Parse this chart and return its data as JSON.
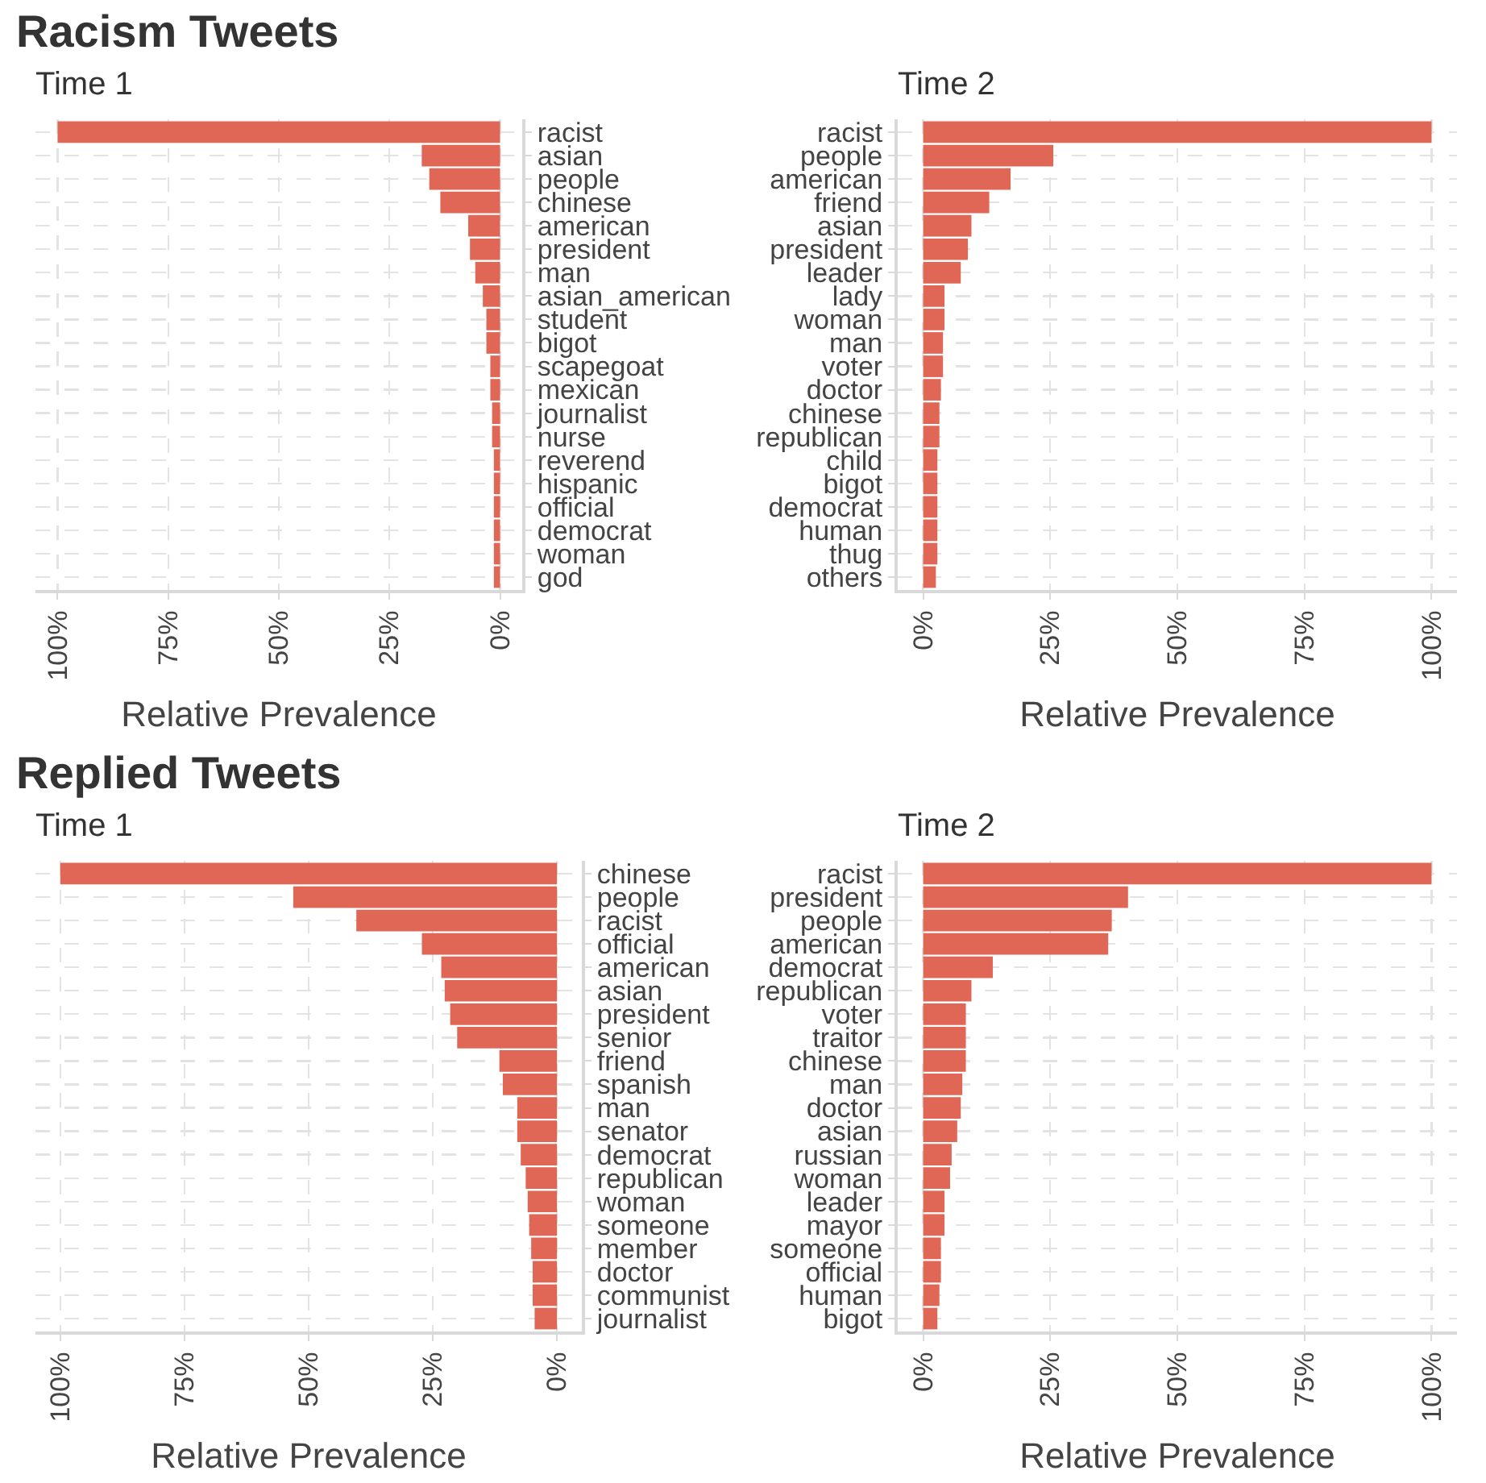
{
  "chart_data": [
    {
      "type": "bar",
      "orientation": "horizontal",
      "title": "Racism Tweets",
      "subtitle": "Time 1",
      "xlabel": "Relative Prevalence",
      "categories": [
        "racist",
        "asian",
        "people",
        "chinese",
        "american",
        "president",
        "man",
        "asian_american",
        "student",
        "bigot",
        "scapegoat",
        "mexican",
        "journalist",
        "nurse",
        "reverend",
        "hispanic",
        "official",
        "democrat",
        "woman",
        "god"
      ],
      "values": [
        100,
        17.7,
        16,
        13.5,
        7.2,
        6.8,
        5.6,
        3.9,
        3.1,
        3.1,
        2.2,
        2.2,
        1.8,
        1.8,
        1.4,
        1.4,
        1.4,
        1.4,
        1.4,
        1.4
      ],
      "color": "#e06756",
      "xlim": [
        105,
        -5
      ],
      "xticks": [
        {
          "value": 100,
          "label": "100%"
        },
        {
          "value": 75,
          "label": "75%"
        },
        {
          "value": 50,
          "label": "50%"
        },
        {
          "value": 25,
          "label": "25%"
        },
        {
          "value": 0,
          "label": "0%"
        }
      ],
      "grid": true
    },
    {
      "type": "bar",
      "orientation": "horizontal",
      "subtitle": "Time 2",
      "xlabel": "Relative Prevalence",
      "categories": [
        "racist",
        "people",
        "american",
        "friend",
        "asian",
        "president",
        "leader",
        "lady",
        "woman",
        "man",
        "voter",
        "doctor",
        "chinese",
        "republican",
        "child",
        "bigot",
        "democrat",
        "human",
        "thug",
        "others"
      ],
      "values": [
        100,
        25.6,
        17.2,
        13,
        9.5,
        8.8,
        7.4,
        4.2,
        4.2,
        3.9,
        3.9,
        3.5,
        3.2,
        3.2,
        2.8,
        2.8,
        2.8,
        2.8,
        2.8,
        2.5
      ],
      "color": "#e06756",
      "xlim": [
        -5,
        105
      ],
      "xticks": [
        {
          "value": 0,
          "label": "0%"
        },
        {
          "value": 25,
          "label": "25%"
        },
        {
          "value": 50,
          "label": "50%"
        },
        {
          "value": 75,
          "label": "75%"
        },
        {
          "value": 100,
          "label": "100%"
        }
      ],
      "grid": true
    },
    {
      "type": "bar",
      "orientation": "horizontal",
      "title": "Replied Tweets",
      "subtitle": "Time 1",
      "xlabel": "Relative Prevalence",
      "categories": [
        "chinese",
        "people",
        "racist",
        "official",
        "american",
        "asian",
        "president",
        "senior",
        "friend",
        "spanish",
        "man",
        "senator",
        "democrat",
        "republican",
        "woman",
        "someone",
        "member",
        "doctor",
        "communist",
        "journalist"
      ],
      "values": [
        100,
        53.1,
        40.4,
        27.2,
        23.3,
        22.6,
        21.5,
        20.1,
        11.6,
        10.9,
        8,
        8,
        7.3,
        6.3,
        5.9,
        5.6,
        5.2,
        4.9,
        4.9,
        4.5
      ],
      "color": "#e06756",
      "xlim": [
        105,
        -5
      ],
      "xticks": [
        {
          "value": 100,
          "label": "100%"
        },
        {
          "value": 75,
          "label": "75%"
        },
        {
          "value": 50,
          "label": "50%"
        },
        {
          "value": 25,
          "label": "25%"
        },
        {
          "value": 0,
          "label": "0%"
        }
      ],
      "grid": true
    },
    {
      "type": "bar",
      "orientation": "horizontal",
      "subtitle": "Time 2",
      "xlabel": "Relative Prevalence",
      "categories": [
        "racist",
        "president",
        "people",
        "american",
        "democrat",
        "republican",
        "voter",
        "traitor",
        "chinese",
        "man",
        "doctor",
        "asian",
        "russian",
        "woman",
        "leader",
        "mayor",
        "someone",
        "official",
        "human",
        "bigot"
      ],
      "values": [
        100,
        40.3,
        37.1,
        36.4,
        13.7,
        9.5,
        8.4,
        8.4,
        8.4,
        7.7,
        7.4,
        6.7,
        5.6,
        5.3,
        4.2,
        4.2,
        3.5,
        3.5,
        3.2,
        2.8
      ],
      "color": "#e06756",
      "xlim": [
        -5,
        105
      ],
      "xticks": [
        {
          "value": 0,
          "label": "0%"
        },
        {
          "value": 25,
          "label": "25%"
        },
        {
          "value": 50,
          "label": "50%"
        },
        {
          "value": 75,
          "label": "75%"
        },
        {
          "value": 100,
          "label": "100%"
        }
      ],
      "grid": true
    }
  ]
}
